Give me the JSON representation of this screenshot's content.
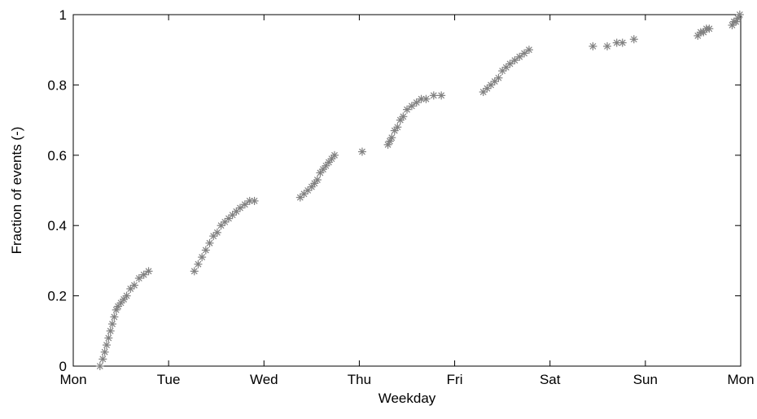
{
  "chart_data": {
    "type": "scatter",
    "title": "",
    "xlabel": "Weekday",
    "ylabel": "Fraction of events (-)",
    "xlim": [
      0,
      7
    ],
    "ylim": [
      0,
      1
    ],
    "x_tick_values": [
      0,
      1,
      2,
      3,
      4,
      5,
      6,
      7
    ],
    "x_tick_labels": [
      "Mon",
      "Tue",
      "Wed",
      "Thu",
      "Fri",
      "Sat",
      "Sun",
      "Mon"
    ],
    "y_tick_values": [
      0,
      0.2,
      0.4,
      0.6,
      0.8,
      1
    ],
    "y_tick_labels": [
      "0",
      "0.2",
      "0.4",
      "0.6",
      "0.8",
      "1"
    ],
    "grid": false,
    "legend": "none",
    "marker": "asterisk",
    "marker_color": "#808080",
    "segments": [
      {
        "x": [
          0.28,
          0.31,
          0.33,
          0.35,
          0.37,
          0.39,
          0.41,
          0.43,
          0.45,
          0.47,
          0.5,
          0.53,
          0.56,
          0.6,
          0.64,
          0.69,
          0.74,
          0.79
        ],
        "y": [
          0.0,
          0.02,
          0.04,
          0.06,
          0.08,
          0.1,
          0.12,
          0.14,
          0.16,
          0.17,
          0.18,
          0.19,
          0.2,
          0.22,
          0.23,
          0.25,
          0.26,
          0.27
        ]
      },
      {
        "x": [
          1.27,
          1.31,
          1.35,
          1.39,
          1.43,
          1.47,
          1.51,
          1.55,
          1.59,
          1.63,
          1.67,
          1.71,
          1.75,
          1.8,
          1.85,
          1.9
        ],
        "y": [
          0.27,
          0.29,
          0.31,
          0.33,
          0.35,
          0.37,
          0.38,
          0.4,
          0.41,
          0.42,
          0.43,
          0.44,
          0.45,
          0.46,
          0.47,
          0.47
        ]
      },
      {
        "x": [
          2.38,
          2.42,
          2.46,
          2.5,
          2.53,
          2.56,
          2.59,
          2.62,
          2.65,
          2.68,
          2.71,
          2.74
        ],
        "y": [
          0.48,
          0.49,
          0.5,
          0.51,
          0.52,
          0.53,
          0.55,
          0.56,
          0.57,
          0.58,
          0.59,
          0.6
        ]
      },
      {
        "x": [
          3.03
        ],
        "y": [
          0.61
        ]
      },
      {
        "x": [
          3.3,
          3.32,
          3.34,
          3.37,
          3.4,
          3.43,
          3.46,
          3.5,
          3.55,
          3.6,
          3.65,
          3.7,
          3.78,
          3.86
        ],
        "y": [
          0.63,
          0.64,
          0.65,
          0.67,
          0.68,
          0.7,
          0.71,
          0.73,
          0.74,
          0.75,
          0.76,
          0.76,
          0.77,
          0.77
        ]
      },
      {
        "x": [
          4.3,
          4.34,
          4.38,
          4.42,
          4.46,
          4.5,
          4.54,
          4.58,
          4.63,
          4.68,
          4.73,
          4.78
        ],
        "y": [
          0.78,
          0.79,
          0.8,
          0.81,
          0.82,
          0.84,
          0.85,
          0.86,
          0.87,
          0.88,
          0.89,
          0.9
        ]
      },
      {
        "x": [
          5.45,
          5.6,
          5.7,
          5.76,
          5.88
        ],
        "y": [
          0.91,
          0.91,
          0.92,
          0.92,
          0.93
        ]
      },
      {
        "x": [
          6.55,
          6.58,
          6.61,
          6.64,
          6.67,
          6.91,
          6.93,
          6.95,
          6.97,
          6.99
        ],
        "y": [
          0.94,
          0.95,
          0.95,
          0.96,
          0.96,
          0.97,
          0.98,
          0.98,
          0.99,
          1.0
        ]
      }
    ]
  }
}
